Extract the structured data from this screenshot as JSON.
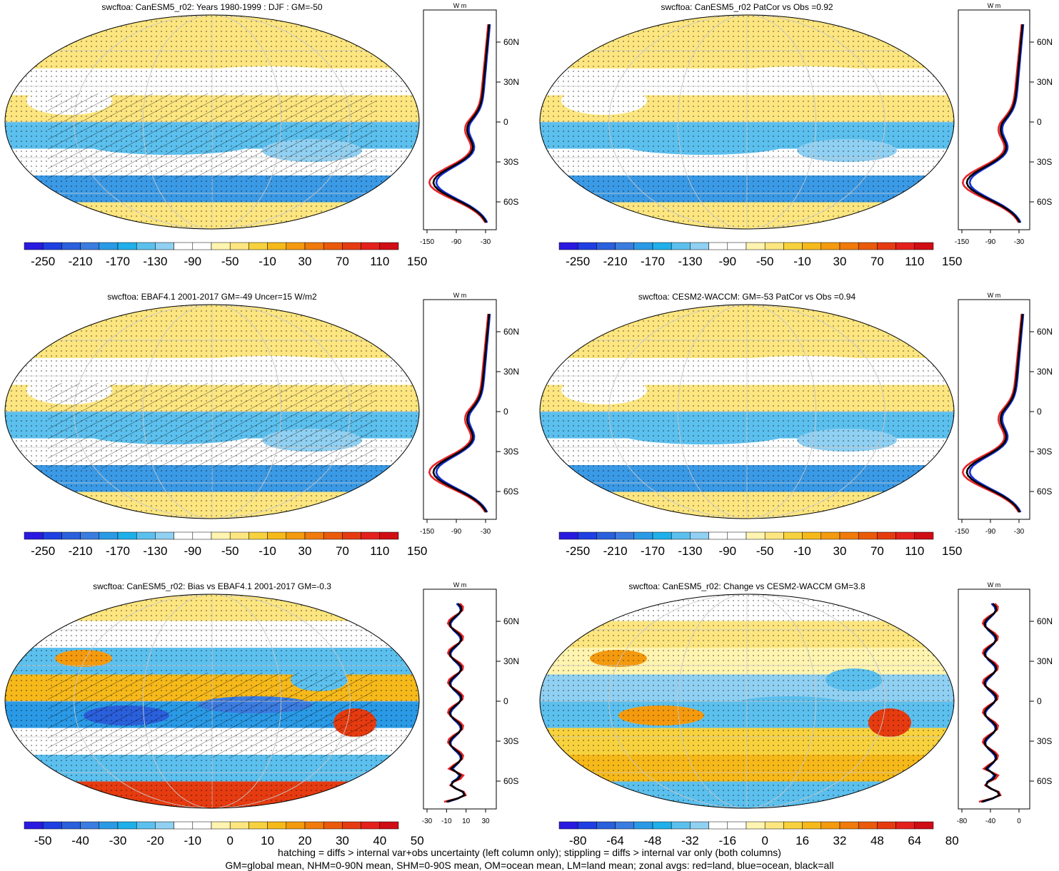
{
  "footer": {
    "line1": "hatching = diffs > internal var+obs uncertainty (left column only); stippling = diffs > internal var only (both columns)",
    "line2": "GM=global mean, NHM=0-90N mean, SHM=0-90S mean, OM=ocean mean, LM=land mean; zonal avgs: red=land, blue=ocean, black=all"
  },
  "colors": {
    "land": "#e8242a",
    "ocean": "#1530d8",
    "all": "#000000"
  },
  "zonal_units": "W m",
  "chart_data": [
    {
      "type": "heatmap",
      "title": "swcftoa: CanESM5_r02: Years 1980-1999 : DJF : GM=-50",
      "colorbar": {
        "labels": [
          "-250",
          "-210",
          "-170",
          "-130",
          "-90",
          "-50",
          "-10",
          "30",
          "70",
          "110",
          "150"
        ],
        "colors": [
          "#2a1ae0",
          "#1f3fe2",
          "#2a60dc",
          "#3b7ce0",
          "#2a9ae6",
          "#1fb0ea",
          "#5cc0ee",
          "#90d0f2",
          "#ffffff",
          "#ffffff",
          "#fff4b0",
          "#fde680",
          "#f8d23e",
          "#f6b91a",
          "#f49a0e",
          "#f07a0a",
          "#ea5a0a",
          "#e63b10",
          "#e4201c",
          "#d00c14"
        ]
      },
      "zonal": {
        "xticks": [
          "-150",
          "-90",
          "-30"
        ],
        "lat_labels": [
          "60N",
          "30N",
          "0",
          "30S",
          "60S"
        ]
      },
      "hatched": true
    },
    {
      "type": "heatmap",
      "title": "swcftoa: CanESM5_r02 PatCor vs Obs =0.92",
      "colorbar": {
        "labels": [
          "-250",
          "-210",
          "-170",
          "-130",
          "-90",
          "-50",
          "-10",
          "30",
          "70",
          "110",
          "150"
        ]
      },
      "zonal": {
        "xticks": [
          "-150",
          "-90",
          "-30"
        ],
        "lat_labels": [
          "60N",
          "30N",
          "0",
          "30S",
          "60S"
        ]
      },
      "hatched": false
    },
    {
      "type": "heatmap",
      "title": "swcftoa: EBAF4.1 2001-2017 GM=-49 Uncer=15 W/m2",
      "colorbar": {
        "labels": [
          "-250",
          "-210",
          "-170",
          "-130",
          "-90",
          "-50",
          "-10",
          "30",
          "70",
          "110",
          "150"
        ]
      },
      "zonal": {
        "xticks": [
          "-150",
          "-90",
          "-30"
        ],
        "lat_labels": [
          "60N",
          "30N",
          "0",
          "30S",
          "60S"
        ]
      },
      "hatched": true
    },
    {
      "type": "heatmap",
      "title": "swcftoa: CESM2-WACCM: GM=-53 PatCor vs Obs =0.94",
      "colorbar": {
        "labels": [
          "-250",
          "-210",
          "-170",
          "-130",
          "-90",
          "-50",
          "-10",
          "30",
          "70",
          "110",
          "150"
        ]
      },
      "zonal": {
        "xticks": [
          "-150",
          "-90",
          "-30"
        ],
        "lat_labels": [
          "60N",
          "30N",
          "0",
          "30S",
          "60S"
        ]
      },
      "hatched": false
    },
    {
      "type": "heatmap",
      "title": "swcftoa: CanESM5_r02: Bias vs EBAF4.1 2001-2017 GM=-0.3",
      "colorbar": {
        "labels": [
          "-50",
          "-40",
          "-30",
          "-20",
          "-10",
          "0",
          "10",
          "20",
          "30",
          "40",
          "50"
        ]
      },
      "zonal": {
        "xticks": [
          "-30",
          "-10",
          "10",
          "30"
        ],
        "lat_labels": [
          "60N",
          "30N",
          "0",
          "30S",
          "60S"
        ]
      },
      "hatched": true
    },
    {
      "type": "heatmap",
      "title": "swcftoa: CanESM5_r02: Change vs CESM2-WACCM GM=3.8",
      "colorbar": {
        "labels": [
          "-80",
          "-64",
          "-48",
          "-32",
          "-16",
          "0",
          "16",
          "32",
          "48",
          "64",
          "80"
        ]
      },
      "zonal": {
        "xticks": [
          "-80",
          "-40",
          "0"
        ],
        "lat_labels": [
          "60N",
          "30N",
          "0",
          "30S",
          "60S"
        ]
      },
      "hatched": false
    }
  ]
}
